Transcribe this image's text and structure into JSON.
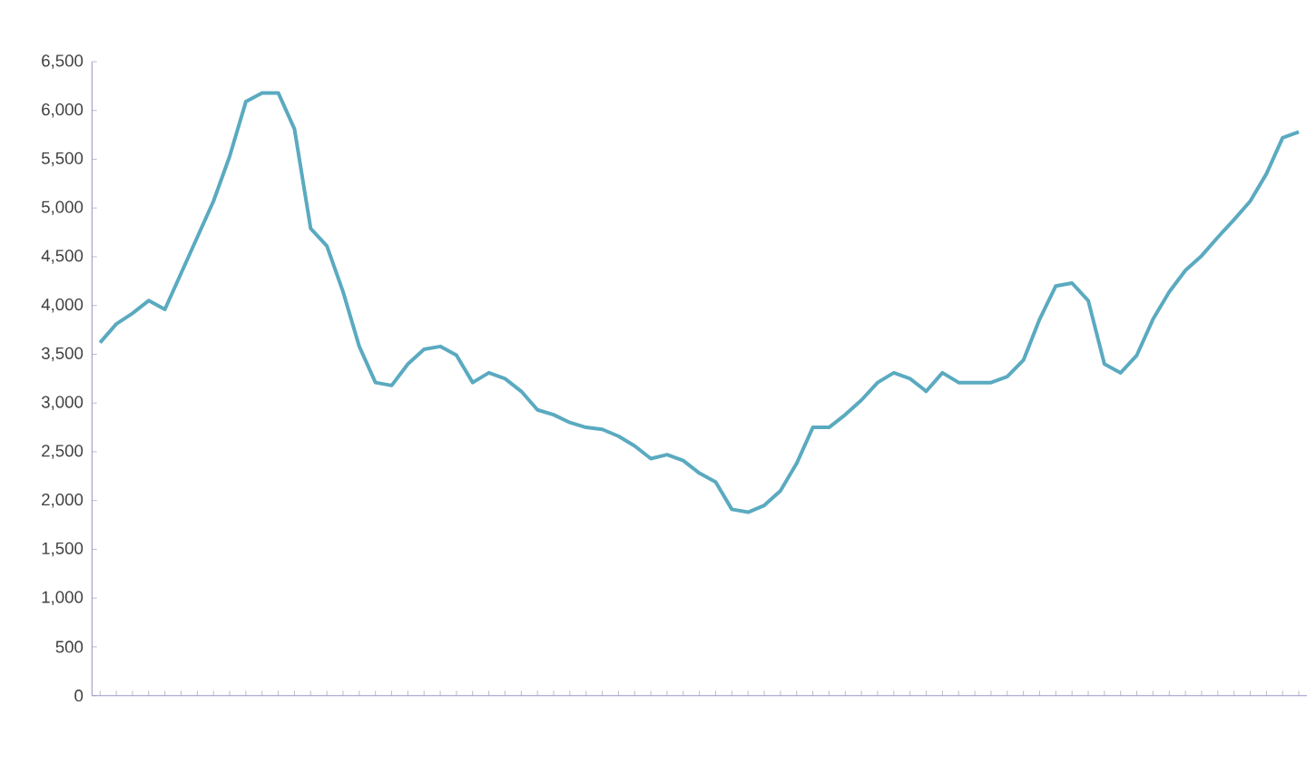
{
  "chart_data": {
    "type": "line",
    "color": "#5aaac0",
    "marker": "none",
    "line_style": "solid",
    "categories": [
      null,
      null,
      null,
      null,
      null,
      null,
      null,
      null,
      null,
      null,
      null,
      null,
      null,
      null,
      null,
      null,
      null,
      null,
      null,
      null,
      null,
      null,
      null,
      null,
      null,
      null,
      null,
      null,
      null,
      null,
      null,
      null,
      null,
      null,
      null,
      null,
      null,
      null,
      null,
      null,
      null,
      null,
      null,
      null,
      null,
      null,
      null,
      null,
      null,
      null,
      null,
      null,
      null,
      null,
      null,
      null,
      null,
      null,
      null,
      null,
      null,
      null,
      null,
      null,
      null,
      null,
      null,
      null,
      null,
      null,
      null,
      null,
      null,
      null,
      null
    ],
    "values": [
      3620,
      3810,
      3920,
      4050,
      3960,
      4330,
      4700,
      5070,
      5530,
      6090,
      6180,
      6180,
      5810,
      4790,
      4610,
      4140,
      3580,
      3210,
      3180,
      3400,
      3550,
      3580,
      3490,
      3210,
      3310,
      3250,
      3120,
      2930,
      2880,
      2800,
      2750,
      2730,
      2660,
      2560,
      2430,
      2470,
      2410,
      2280,
      2190,
      1910,
      1880,
      1950,
      2100,
      2380,
      2750,
      2750,
      2880,
      3030,
      3210,
      3310,
      3250,
      3120,
      3310,
      3210,
      3210,
      3210,
      3270,
      3440,
      3860,
      4200,
      4230,
      4050,
      3400,
      3310,
      3490,
      3860,
      4140,
      4360,
      4510,
      4700,
      4880,
      5070,
      5350,
      5720,
      5780
    ],
    "ylim": [
      0,
      6500
    ],
    "yticks": [
      0,
      500,
      {
        "value": 1000,
        "label": "1,000"
      },
      {
        "value": 1500,
        "label": "1,500"
      },
      {
        "value": 2000,
        "label": "2,000"
      },
      {
        "value": 2500,
        "label": "2,500"
      },
      {
        "value": 3000,
        "label": "3,000"
      },
      {
        "value": 3500,
        "label": "3,500"
      },
      {
        "value": 4000,
        "label": "4,000"
      },
      {
        "value": 4500,
        "label": "4,500"
      },
      {
        "value": 5000,
        "label": "5,000"
      },
      {
        "value": 5500,
        "label": "5,500"
      },
      {
        "value": 6000,
        "label": "6,000"
      },
      {
        "value": 6500,
        "label": "6,500"
      }
    ],
    "grid": false
  }
}
